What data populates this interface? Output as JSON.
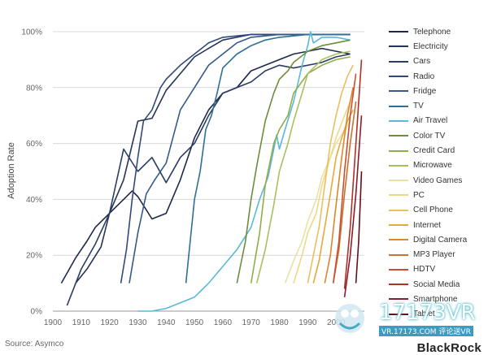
{
  "chart_data": {
    "type": "line",
    "ylabel": "Adoption Rate",
    "xlim": [
      1900,
      2010
    ],
    "ylim": [
      0,
      100
    ],
    "x_ticks": [
      1900,
      1910,
      1920,
      1930,
      1940,
      1950,
      1960,
      1970,
      1980,
      1990,
      2000
    ],
    "y_ticks": [
      0,
      20,
      40,
      60,
      80,
      100
    ],
    "y_tick_labels": [
      "0%",
      "20%",
      "40%",
      "60%",
      "80%",
      "100%"
    ],
    "grid": "horizontal",
    "legend_position": "right",
    "series": [
      {
        "name": "Telephone",
        "color": "#1b2a4a",
        "x": [
          1903,
          1908,
          1912,
          1915,
          1920,
          1925,
          1928,
          1930,
          1935,
          1940,
          1945,
          1950,
          1955,
          1960,
          1965,
          1970,
          1975,
          1980,
          1985,
          1990,
          1995,
          2000,
          2005
        ],
        "y": [
          10,
          19,
          25,
          30,
          35,
          40,
          43,
          41,
          33,
          35,
          47,
          62,
          72,
          78,
          80,
          86,
          88,
          90,
          92,
          93,
          94,
          93,
          92
        ]
      },
      {
        "name": "Electricity",
        "color": "#243457",
        "x": [
          1908,
          1912,
          1917,
          1920,
          1925,
          1930,
          1935,
          1940,
          1945,
          1950,
          1955,
          1960,
          1965,
          1970,
          1975,
          1980,
          1990,
          2000,
          2005
        ],
        "y": [
          10,
          15,
          23,
          35,
          47,
          68,
          69,
          79,
          85,
          91,
          94,
          97,
          98,
          99,
          99,
          99,
          99,
          99,
          99
        ]
      },
      {
        "name": "Cars",
        "color": "#2b3d63",
        "x": [
          1905,
          1910,
          1915,
          1920,
          1925,
          1930,
          1935,
          1940,
          1945,
          1950,
          1955,
          1960,
          1965,
          1970,
          1975,
          1980,
          1985,
          1990,
          1995,
          2000,
          2005
        ],
        "y": [
          2,
          15,
          24,
          35,
          58,
          50,
          55,
          46,
          55,
          60,
          70,
          78,
          80,
          82,
          86,
          88,
          87,
          88,
          89,
          91,
          92
        ]
      },
      {
        "name": "Radio",
        "color": "#33497a",
        "x": [
          1924,
          1926,
          1928,
          1930,
          1932,
          1935,
          1938,
          1940,
          1945,
          1950,
          1955,
          1960,
          1970,
          1980,
          2000,
          2005
        ],
        "y": [
          10,
          22,
          40,
          55,
          68,
          72,
          80,
          83,
          88,
          92,
          96,
          98,
          99,
          99,
          99,
          99
        ]
      },
      {
        "name": "Fridge",
        "color": "#355a8a",
        "x": [
          1927,
          1930,
          1933,
          1936,
          1940,
          1945,
          1950,
          1955,
          1960,
          1965,
          1970,
          1980,
          2000,
          2005
        ],
        "y": [
          10,
          28,
          42,
          47,
          53,
          72,
          80,
          88,
          92,
          96,
          98,
          99,
          99,
          99
        ]
      },
      {
        "name": "TV",
        "color": "#2e6f95",
        "x": [
          1947,
          1950,
          1952,
          1954,
          1956,
          1958,
          1960,
          1965,
          1970,
          1975,
          1980,
          1990,
          2000,
          2005
        ],
        "y": [
          10,
          40,
          50,
          65,
          70,
          78,
          87,
          92,
          95,
          97,
          98,
          99,
          99,
          99
        ]
      },
      {
        "name": "Air Travel",
        "color": "#5bb8d8",
        "x": [
          1930,
          1935,
          1940,
          1945,
          1950,
          1953,
          1955,
          1960,
          1965,
          1970,
          1973,
          1976,
          1979,
          1980,
          1982,
          1985,
          1988,
          1990,
          1991,
          1992,
          1995,
          2000,
          2005
        ],
        "y": [
          0,
          0,
          1,
          3,
          5,
          8,
          10,
          16,
          22,
          30,
          40,
          48,
          63,
          58,
          65,
          75,
          88,
          95,
          100,
          96,
          98,
          98,
          97
        ]
      },
      {
        "name": "Color TV",
        "color": "#6b8e3a",
        "x": [
          1965,
          1968,
          1970,
          1972,
          1975,
          1978,
          1980,
          1983,
          1985,
          1990,
          1995,
          2000,
          2005
        ],
        "y": [
          10,
          25,
          40,
          52,
          68,
          78,
          83,
          86,
          89,
          93,
          95,
          96,
          97
        ]
      },
      {
        "name": "Credit Card",
        "color": "#8fae4a",
        "x": [
          1970,
          1973,
          1975,
          1978,
          1980,
          1983,
          1985,
          1990,
          1995,
          2000,
          2005
        ],
        "y": [
          10,
          28,
          45,
          60,
          65,
          70,
          78,
          85,
          88,
          90,
          91
        ]
      },
      {
        "name": "Microwave",
        "color": "#a8c060",
        "x": [
          1972,
          1975,
          1978,
          1980,
          1983,
          1985,
          1988,
          1990,
          1993,
          1995,
          2000,
          2005
        ],
        "y": [
          10,
          22,
          38,
          50,
          60,
          68,
          78,
          85,
          88,
          90,
          92,
          93
        ]
      },
      {
        "name": "Video Games",
        "color": "#e8e2a8",
        "x": [
          1982,
          1985,
          1988,
          1990,
          1993,
          1995,
          1998,
          2000,
          2005
        ],
        "y": [
          10,
          18,
          25,
          32,
          40,
          48,
          55,
          60,
          68
        ]
      },
      {
        "name": "PC",
        "color": "#f0d888",
        "x": [
          1985,
          1988,
          1990,
          1993,
          1995,
          1998,
          2000,
          2003,
          2005
        ],
        "y": [
          10,
          20,
          28,
          35,
          45,
          55,
          62,
          70,
          75
        ]
      },
      {
        "name": "Cell Phone",
        "color": "#e8c060",
        "x": [
          1990,
          1992,
          1994,
          1996,
          1998,
          2000,
          2002,
          2004,
          2006
        ],
        "y": [
          10,
          20,
          30,
          45,
          60,
          70,
          78,
          84,
          88
        ]
      },
      {
        "name": "Internet",
        "color": "#e8a838",
        "x": [
          1992,
          1994,
          1996,
          1998,
          2000,
          2002,
          2004,
          2006
        ],
        "y": [
          10,
          18,
          30,
          42,
          55,
          62,
          68,
          72
        ]
      },
      {
        "name": "Digital Camera",
        "color": "#d88828",
        "x": [
          1996,
          1998,
          2000,
          2002,
          2004,
          2006
        ],
        "y": [
          10,
          20,
          38,
          55,
          70,
          80
        ]
      },
      {
        "name": "MP3 Player",
        "color": "#cc7030",
        "x": [
          1999,
          2001,
          2003,
          2005,
          2007
        ],
        "y": [
          10,
          22,
          42,
          60,
          75
        ]
      },
      {
        "name": "HDTV",
        "color": "#c85030",
        "x": [
          1999,
          2001,
          2003,
          2005,
          2007
        ],
        "y": [
          10,
          25,
          50,
          70,
          85
        ]
      },
      {
        "name": "Social Media",
        "color": "#b03028",
        "x": [
          2003,
          2005,
          2007,
          2009
        ],
        "y": [
          8,
          30,
          60,
          90
        ]
      },
      {
        "name": "Smartphone",
        "color": "#8a1e28",
        "x": [
          2003,
          2005,
          2007,
          2009
        ],
        "y": [
          5,
          20,
          42,
          70
        ]
      },
      {
        "name": "Tablet",
        "color": "#5a1420",
        "x": [
          2007,
          2008,
          2009
        ],
        "y": [
          10,
          25,
          50
        ]
      }
    ]
  },
  "source": "Source: Asymco",
  "brand": "BlackRock",
  "watermark": {
    "text": "17173VR",
    "sub": "VR.17173.COM 评论送VR"
  }
}
